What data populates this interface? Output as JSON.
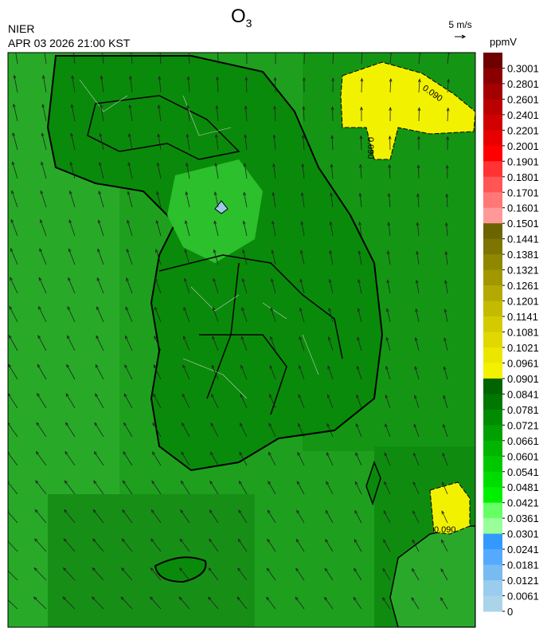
{
  "header": {
    "agency": "NIER",
    "datetime": "APR 03 2026 21:00 KST",
    "title": {
      "text": "O",
      "subscript": "3"
    }
  },
  "wind_scale": {
    "label": "5 m/s"
  },
  "colorbar": {
    "unit": "ppmV",
    "ticks": [
      0.3001,
      0.2801,
      0.2601,
      0.2401,
      0.2201,
      0.2001,
      0.1901,
      0.1801,
      0.1701,
      0.1601,
      0.1501,
      0.1441,
      0.1381,
      0.1321,
      0.1261,
      0.1201,
      0.1141,
      0.1081,
      0.1021,
      0.0961,
      0.0901,
      0.0841,
      0.0781,
      0.0721,
      0.0661,
      0.0601,
      0.0541,
      0.0481,
      0.0421,
      0.0361,
      0.0301,
      0.0241,
      0.0181,
      0.0121,
      0.0061,
      0
    ],
    "colors": [
      "#6e0000",
      "#8a0000",
      "#a30000",
      "#bb0000",
      "#d00000",
      "#e60000",
      "#ff0000",
      "#ff3333",
      "#ff5555",
      "#ff7777",
      "#ff9999",
      "#6b6400",
      "#7d7500",
      "#8f8700",
      "#a19800",
      "#b3a900",
      "#c4ba00",
      "#d4ca00",
      "#e0d800",
      "#ebe600",
      "#f2f200",
      "#006400",
      "#007800",
      "#008c00",
      "#00a000",
      "#00b400",
      "#00c800",
      "#00dc00",
      "#00f000",
      "#66ff66",
      "#99ff99",
      "#3399ff",
      "#55aaff",
      "#77bbf0",
      "#99ccee",
      "#aad4ea"
    ]
  },
  "contour_labels": [
    "0.090",
    "0.090",
    "0.090"
  ]
}
